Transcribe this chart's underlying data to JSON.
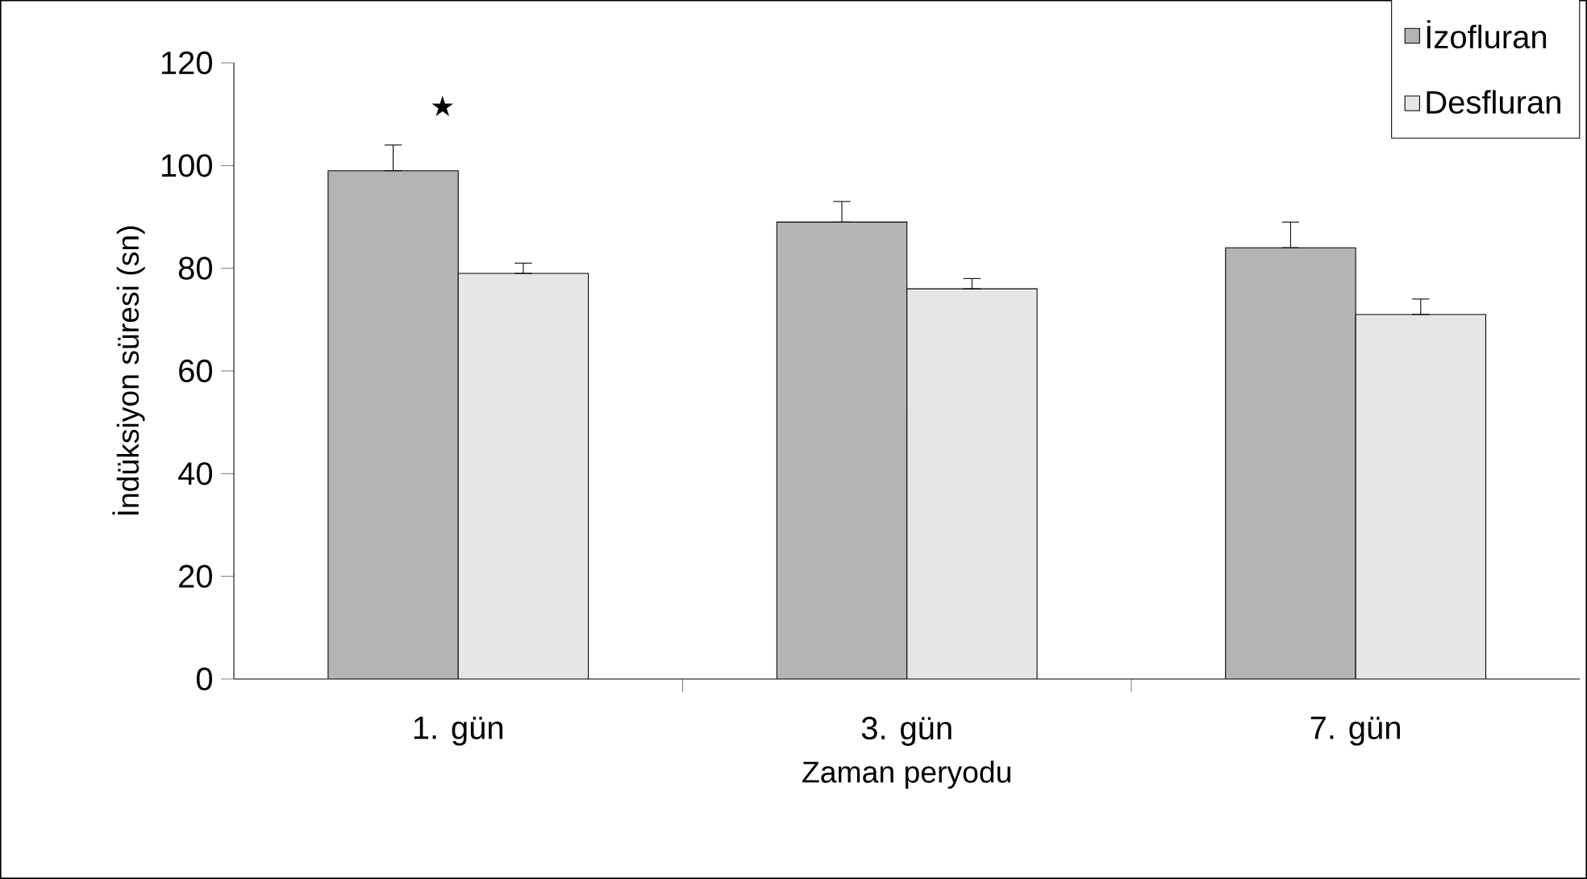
{
  "chart_data": {
    "type": "bar",
    "ylabel": "İndüksiyon süresi (sn)",
    "xlabel": "Zaman peryodu",
    "categories": [
      "1. gün",
      "3. gün",
      "7. gün"
    ],
    "series": [
      {
        "name": "İzofluran",
        "color": "#b4b4b4",
        "values": [
          99,
          89,
          84
        ],
        "errors": [
          [
            99,
            104
          ],
          [
            89,
            93
          ],
          [
            84,
            89
          ]
        ]
      },
      {
        "name": "Desfluran",
        "color": "#e6e6e6",
        "values": [
          79,
          76,
          71
        ],
        "errors": [
          [
            79,
            81
          ],
          [
            76,
            78
          ],
          [
            71,
            74
          ]
        ]
      }
    ],
    "ylim": [
      0,
      120
    ],
    "yticks": [
      0,
      20,
      40,
      60,
      80,
      100,
      120
    ],
    "grid": false,
    "legend": "top right",
    "annotations": [
      "★"
    ]
  }
}
